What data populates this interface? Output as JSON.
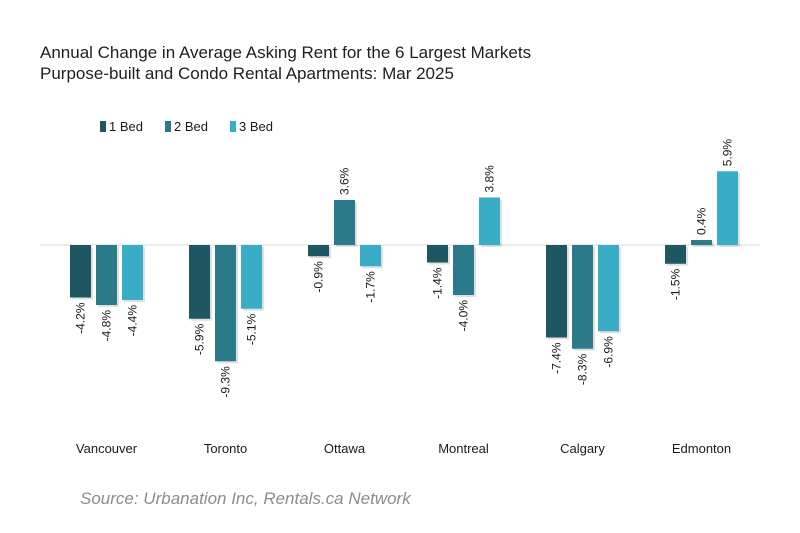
{
  "chart_data": {
    "type": "bar",
    "title": "Annual Change in Average Asking Rent for the 6 Largest Markets",
    "subtitle": "Purpose-built and Condo Rental Apartments: Mar 2025",
    "categories": [
      "Vancouver",
      "Toronto",
      "Ottawa",
      "Montreal",
      "Calgary",
      "Edmonton"
    ],
    "series": [
      {
        "name": "1 Bed",
        "color": "#1e5762",
        "values": [
          -4.2,
          -5.9,
          -0.9,
          -1.4,
          -7.4,
          -1.5
        ]
      },
      {
        "name": "2 Bed",
        "color": "#2a7a8a",
        "values": [
          -4.8,
          -9.3,
          3.6,
          -4.0,
          -8.3,
          0.4
        ]
      },
      {
        "name": "3 Bed",
        "color": "#3aadc6",
        "values": [
          -4.4,
          -5.1,
          -1.7,
          3.8,
          -6.9,
          5.9
        ]
      }
    ],
    "value_suffix": "%",
    "xlabel": "",
    "ylabel": "",
    "ylim": [
      -10,
      7
    ],
    "legend": "top-left",
    "grid": false
  },
  "source": "Source: Urbanation Inc, Rentals.ca Network"
}
